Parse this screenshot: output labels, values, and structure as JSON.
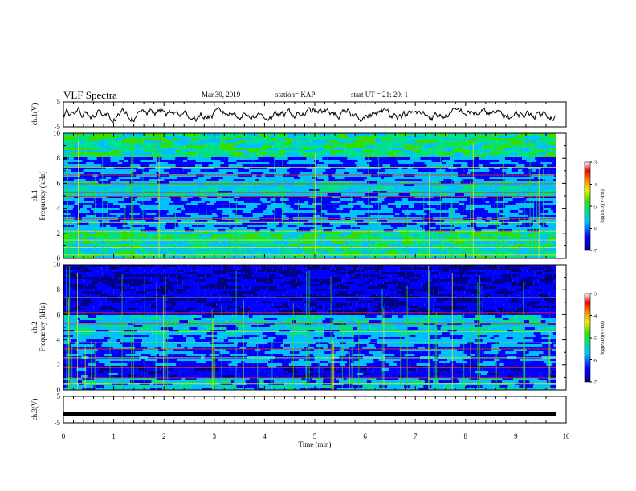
{
  "header": {
    "title": "VLF Spectra",
    "date": "Mar.30, 2019",
    "station": "station= KAP",
    "start": "start  UT  =   21: 20: 1"
  },
  "chart_data": [
    {
      "type": "line",
      "name": "ch1-waveform",
      "ylabel": "ch.1(V)",
      "ylim": [
        -5,
        5
      ],
      "y_ticks": [
        "5",
        "-5"
      ],
      "xlim": [
        0,
        10
      ],
      "description_values": "noisy waveform roughly between -3 and 3 V over 0 to 9.8 min"
    },
    {
      "type": "heatmap",
      "name": "ch1-spectrogram",
      "ylabel": "ch.1\nFrequency  (kHz)",
      "ylim": [
        0,
        10
      ],
      "y_ticks": [
        "0",
        "2",
        "4",
        "6",
        "8",
        "10"
      ],
      "xlim": [
        0,
        10
      ],
      "data_extent_x": [
        0,
        9.8
      ],
      "colorbar": {
        "label": "log(PSD)(V²/Hz)",
        "range": [
          -7,
          -3
        ],
        "ticks": [
          "-3",
          "-4",
          "-5",
          "-6",
          "-7"
        ]
      }
    },
    {
      "type": "heatmap",
      "name": "ch2-spectrogram",
      "ylabel": "ch.2\nFrequency  (kHz)",
      "ylim": [
        0,
        10
      ],
      "y_ticks": [
        "0",
        "2",
        "4",
        "6",
        "8",
        "10"
      ],
      "xlim": [
        0,
        10
      ],
      "data_extent_x": [
        0,
        9.8
      ],
      "colorbar": {
        "label": "log(PSD)(V²/Hz)",
        "range": [
          -7,
          -3
        ],
        "ticks": [
          "-3",
          "-4",
          "-5",
          "-6",
          "-7"
        ]
      }
    },
    {
      "type": "line",
      "name": "ch3-waveform",
      "ylabel": "ch.3(V)",
      "ylim": [
        -5,
        5
      ],
      "y_ticks": [
        "5",
        "-5"
      ],
      "xlim": [
        0,
        10
      ],
      "values_constant": -1.5
    }
  ],
  "xaxis": {
    "label": "Time  (min)",
    "ticks": [
      "0",
      "1",
      "2",
      "3",
      "4",
      "5",
      "6",
      "7",
      "8",
      "9",
      "10"
    ],
    "range": [
      0,
      10
    ]
  },
  "colors": {
    "waveform": "#000000",
    "psd_low": "#00008b",
    "psd_high": "#ffffff"
  }
}
